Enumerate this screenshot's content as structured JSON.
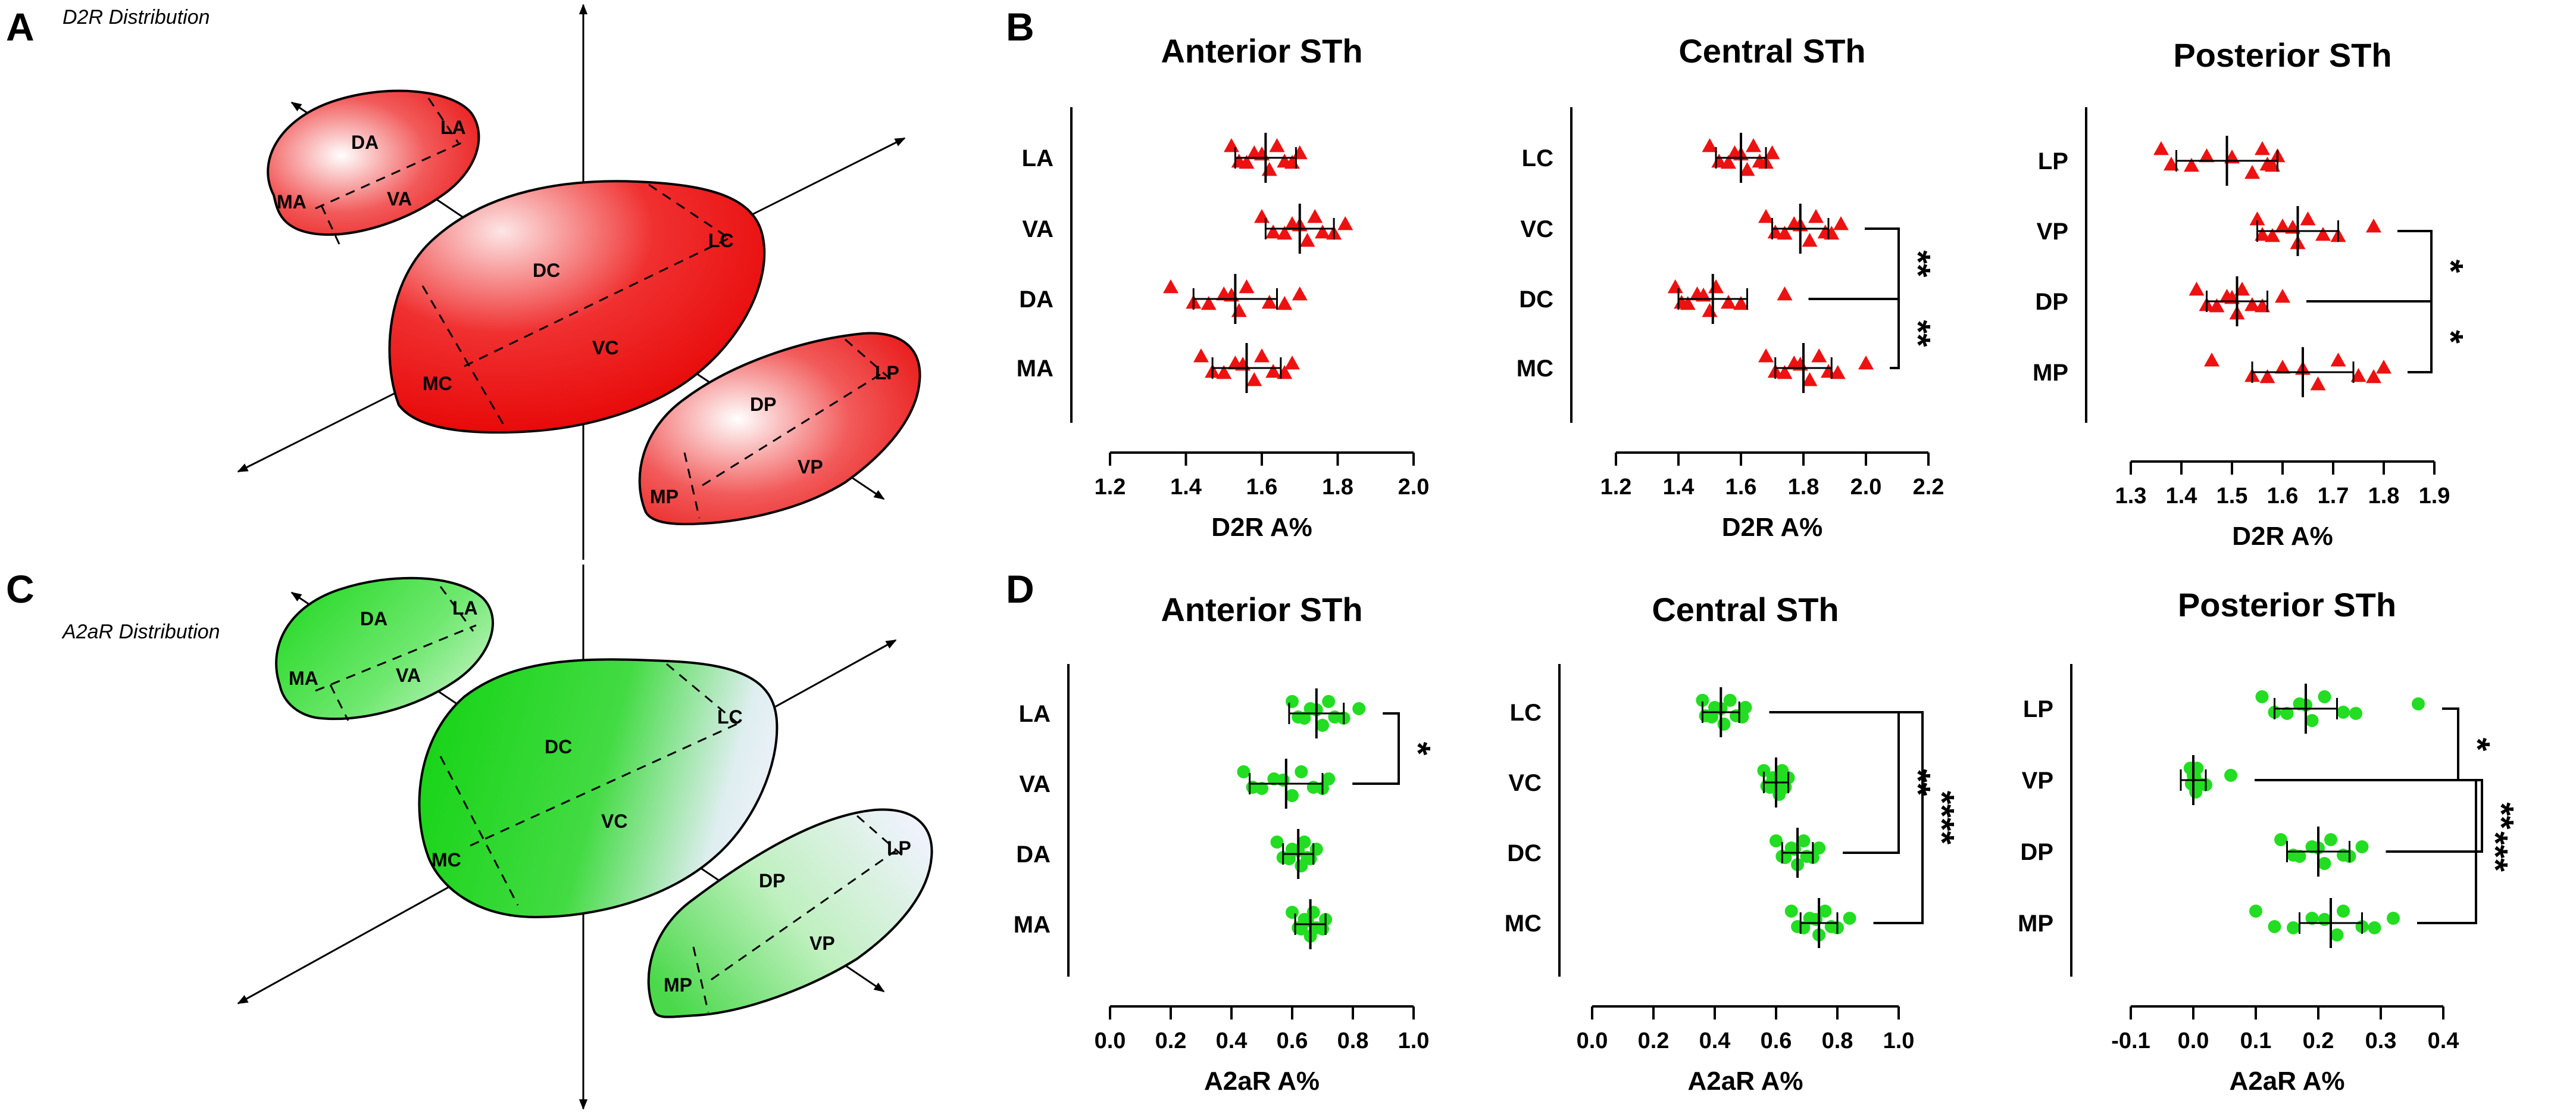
{
  "panels": {
    "A": {
      "label": "A",
      "title": "D2R Distribution"
    },
    "B": {
      "label": "B"
    },
    "C": {
      "label": "C",
      "title": "A2aR Distribution"
    },
    "D": {
      "label": "D"
    }
  },
  "diagram": {
    "anterior": {
      "regions": [
        "DA",
        "LA",
        "MA",
        "VA"
      ]
    },
    "central": {
      "regions": [
        "DC",
        "LC",
        "VC",
        "MC"
      ]
    },
    "posterior": {
      "regions": [
        "DP",
        "LP",
        "VP",
        "MP"
      ]
    }
  },
  "colors": {
    "red": "#ee1111",
    "green": "#22dd22",
    "axis": "#000000"
  },
  "chart_data": [
    {
      "id": "B1",
      "type": "scatter",
      "title": "Anterior STh",
      "xlabel": "D2R A%",
      "xlim": [
        1.2,
        2.0
      ],
      "xticks": [
        "1.2",
        "1.4",
        "1.6",
        "1.8",
        "2.0"
      ],
      "categories": [
        "LA",
        "VA",
        "DA",
        "MA"
      ],
      "marker": "triangle",
      "color": "#ee1111",
      "groups": [
        {
          "name": "LA",
          "mean": 1.61,
          "sd": 0.08,
          "points": [
            1.52,
            1.54,
            1.56,
            1.58,
            1.6,
            1.62,
            1.64,
            1.66,
            1.68,
            1.7
          ]
        },
        {
          "name": "VA",
          "mean": 1.7,
          "sd": 0.09,
          "points": [
            1.6,
            1.63,
            1.66,
            1.68,
            1.7,
            1.72,
            1.74,
            1.76,
            1.79,
            1.82
          ]
        },
        {
          "name": "DA",
          "mean": 1.53,
          "sd": 0.11,
          "points": [
            1.36,
            1.42,
            1.46,
            1.5,
            1.52,
            1.54,
            1.56,
            1.62,
            1.66,
            1.7
          ]
        },
        {
          "name": "MA",
          "mean": 1.56,
          "sd": 0.09,
          "points": [
            1.44,
            1.47,
            1.5,
            1.53,
            1.55,
            1.58,
            1.6,
            1.63,
            1.66,
            1.68
          ]
        }
      ],
      "significance": []
    },
    {
      "id": "B2",
      "type": "scatter",
      "title": "Central STh",
      "xlabel": "D2R A%",
      "xlim": [
        1.2,
        2.2
      ],
      "xticks": [
        "1.2",
        "1.4",
        "1.6",
        "1.8",
        "2.0",
        "2.2"
      ],
      "categories": [
        "LC",
        "VC",
        "DC",
        "MC"
      ],
      "marker": "triangle",
      "color": "#ee1111",
      "groups": [
        {
          "name": "LC",
          "mean": 1.6,
          "sd": 0.08,
          "points": [
            1.5,
            1.53,
            1.56,
            1.58,
            1.6,
            1.62,
            1.64,
            1.66,
            1.68,
            1.7
          ]
        },
        {
          "name": "VC",
          "mean": 1.79,
          "sd": 0.09,
          "points": [
            1.68,
            1.71,
            1.74,
            1.77,
            1.79,
            1.82,
            1.84,
            1.87,
            1.89,
            1.92
          ]
        },
        {
          "name": "DC",
          "mean": 1.51,
          "sd": 0.11,
          "points": [
            1.39,
            1.41,
            1.43,
            1.46,
            1.48,
            1.5,
            1.52,
            1.56,
            1.6,
            1.74
          ]
        },
        {
          "name": "MC",
          "mean": 1.8,
          "sd": 0.09,
          "points": [
            1.68,
            1.71,
            1.74,
            1.77,
            1.79,
            1.82,
            1.85,
            1.88,
            1.91,
            2.0
          ]
        }
      ],
      "significance": [
        {
          "from": "VC",
          "to": "DC",
          "label": "**"
        },
        {
          "from": "DC",
          "to": "MC",
          "label": "**"
        }
      ]
    },
    {
      "id": "B3",
      "type": "scatter",
      "title": "Posterior STh",
      "xlabel": "D2R A%",
      "xlim": [
        1.3,
        1.9
      ],
      "xticks": [
        "1.3",
        "1.4",
        "1.5",
        "1.6",
        "1.7",
        "1.8",
        "1.9"
      ],
      "categories": [
        "LP",
        "VP",
        "DP",
        "MP"
      ],
      "marker": "triangle",
      "color": "#ee1111",
      "groups": [
        {
          "name": "LP",
          "mean": 1.49,
          "sd": 0.1,
          "points": [
            1.36,
            1.38,
            1.42,
            1.45,
            1.5,
            1.54,
            1.56,
            1.57,
            1.58,
            1.59
          ]
        },
        {
          "name": "VP",
          "mean": 1.63,
          "sd": 0.08,
          "points": [
            1.55,
            1.56,
            1.58,
            1.6,
            1.62,
            1.63,
            1.65,
            1.68,
            1.71,
            1.78
          ]
        },
        {
          "name": "DP",
          "mean": 1.51,
          "sd": 0.06,
          "points": [
            1.43,
            1.45,
            1.47,
            1.49,
            1.5,
            1.51,
            1.52,
            1.54,
            1.56,
            1.6
          ]
        },
        {
          "name": "MP",
          "mean": 1.64,
          "sd": 0.1,
          "points": [
            1.46,
            1.54,
            1.57,
            1.6,
            1.64,
            1.67,
            1.71,
            1.75,
            1.78,
            1.8
          ]
        }
      ],
      "significance": [
        {
          "from": "VP",
          "to": "DP",
          "label": "*"
        },
        {
          "from": "DP",
          "to": "MP",
          "label": "*"
        }
      ]
    },
    {
      "id": "D1",
      "type": "scatter",
      "title": "Anterior STh",
      "xlabel": "A2aR A%",
      "xlim": [
        0.0,
        1.0
      ],
      "xticks": [
        "0.0",
        "0.2",
        "0.4",
        "0.6",
        "0.8",
        "1.0"
      ],
      "categories": [
        "LA",
        "VA",
        "DA",
        "MA"
      ],
      "marker": "circle",
      "color": "#22dd22",
      "groups": [
        {
          "name": "LA",
          "mean": 0.68,
          "sd": 0.09,
          "points": [
            0.6,
            0.62,
            0.64,
            0.66,
            0.68,
            0.7,
            0.72,
            0.74,
            0.77,
            0.82
          ]
        },
        {
          "name": "VA",
          "mean": 0.58,
          "sd": 0.12,
          "points": [
            0.44,
            0.47,
            0.5,
            0.54,
            0.57,
            0.6,
            0.63,
            0.67,
            0.7,
            0.72
          ]
        },
        {
          "name": "DA",
          "mean": 0.62,
          "sd": 0.05,
          "points": [
            0.55,
            0.57,
            0.59,
            0.6,
            0.62,
            0.63,
            0.64,
            0.65,
            0.66,
            0.68
          ]
        },
        {
          "name": "MA",
          "mean": 0.66,
          "sd": 0.05,
          "points": [
            0.6,
            0.62,
            0.63,
            0.64,
            0.65,
            0.66,
            0.67,
            0.68,
            0.7,
            0.71
          ]
        }
      ],
      "significance": [
        {
          "from": "LA",
          "to": "VA",
          "label": "*"
        }
      ]
    },
    {
      "id": "D2",
      "type": "scatter",
      "title": "Central STh",
      "xlabel": "A2aR A%",
      "xlim": [
        0.0,
        1.0
      ],
      "xticks": [
        "0.0",
        "0.2",
        "0.4",
        "0.6",
        "0.8",
        "1.0"
      ],
      "categories": [
        "LC",
        "VC",
        "DC",
        "MC"
      ],
      "marker": "circle",
      "color": "#22dd22",
      "groups": [
        {
          "name": "LC",
          "mean": 0.42,
          "sd": 0.06,
          "points": [
            0.36,
            0.37,
            0.39,
            0.4,
            0.42,
            0.43,
            0.45,
            0.47,
            0.49,
            0.5
          ]
        },
        {
          "name": "VC",
          "mean": 0.6,
          "sd": 0.04,
          "points": [
            0.56,
            0.57,
            0.58,
            0.59,
            0.6,
            0.61,
            0.62,
            0.62,
            0.63,
            0.64
          ]
        },
        {
          "name": "DC",
          "mean": 0.67,
          "sd": 0.05,
          "points": [
            0.6,
            0.62,
            0.63,
            0.65,
            0.66,
            0.67,
            0.69,
            0.7,
            0.72,
            0.74
          ]
        },
        {
          "name": "MC",
          "mean": 0.74,
          "sd": 0.06,
          "points": [
            0.65,
            0.67,
            0.69,
            0.71,
            0.73,
            0.74,
            0.76,
            0.78,
            0.8,
            0.84
          ]
        }
      ],
      "significance": [
        {
          "from": "LC",
          "to": "DC",
          "label": "**"
        },
        {
          "from": "LC",
          "to": "MC",
          "label": "****"
        }
      ]
    },
    {
      "id": "D3",
      "type": "scatter",
      "title": "Posterior STh",
      "xlabel": "A2aR A%",
      "xlim": [
        -0.1,
        0.4
      ],
      "xticks": [
        "-0.1",
        "0.0",
        "0.1",
        "0.2",
        "0.3",
        "0.4"
      ],
      "categories": [
        "LP",
        "VP",
        "DP",
        "MP"
      ],
      "marker": "circle",
      "color": "#22dd22",
      "groups": [
        {
          "name": "LP",
          "mean": 0.18,
          "sd": 0.05,
          "points": [
            0.11,
            0.13,
            0.15,
            0.17,
            0.18,
            0.19,
            0.21,
            0.24,
            0.26,
            0.36
          ]
        },
        {
          "name": "VP",
          "mean": 0.0,
          "sd": 0.02,
          "points": [
            -0.005,
            -0.003,
            -0.001,
            0.0,
            0.002,
            0.004,
            0.006,
            0.01,
            0.02,
            0.06
          ]
        },
        {
          "name": "DP",
          "mean": 0.2,
          "sd": 0.05,
          "points": [
            0.14,
            0.16,
            0.17,
            0.19,
            0.2,
            0.21,
            0.22,
            0.24,
            0.25,
            0.27
          ]
        },
        {
          "name": "MP",
          "mean": 0.22,
          "sd": 0.05,
          "points": [
            0.1,
            0.13,
            0.16,
            0.19,
            0.21,
            0.23,
            0.24,
            0.27,
            0.29,
            0.32
          ]
        }
      ],
      "significance": [
        {
          "from": "LP",
          "to": "VP",
          "label": "*"
        },
        {
          "from": "VP",
          "to": "DP",
          "label": "**"
        },
        {
          "from": "VP",
          "to": "MP",
          "label": "***"
        }
      ]
    }
  ]
}
